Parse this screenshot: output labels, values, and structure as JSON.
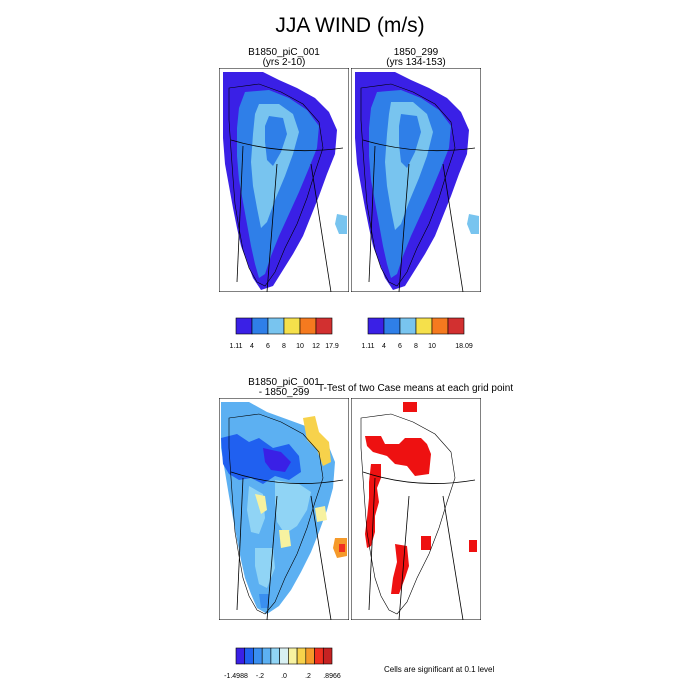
{
  "title": "JJA WIND (m/s)",
  "panels": {
    "p1": {
      "title": "B1850_piC_001",
      "subtitle": "(yrs 2-10)"
    },
    "p2": {
      "title": "1850_299",
      "subtitle": "(yrs 134-153)"
    },
    "p3": {
      "title": "B1850_piC_001",
      "subtitle": "- 1850_299"
    },
    "p4": {
      "title": "T-Test of two Case means at each grid point"
    }
  },
  "colorbars": {
    "cb1": {
      "colors": [
        "#3a20e6",
        "#2f7fe8",
        "#78c4ef",
        "#f5e04b",
        "#f57a1f",
        "#d23030"
      ],
      "labels": [
        "1.11",
        "4",
        "6",
        "8",
        "10",
        "12",
        "17.9"
      ]
    },
    "cb2": {
      "colors": [
        "#3a20e6",
        "#2f7fe8",
        "#78c4ef",
        "#f5e04b",
        "#f57a1f",
        "#d23030"
      ],
      "labels": [
        "1.11",
        "4",
        "6",
        "8",
        "10",
        "",
        "18.09"
      ]
    },
    "cb3": {
      "colors": [
        "#3a20e6",
        "#2060f0",
        "#3a8ff0",
        "#5cb0f2",
        "#90d4f5",
        "#d8f0f2",
        "#f7f2a0",
        "#f7d24b",
        "#f59a2a",
        "#f03020",
        "#c62222"
      ],
      "labels": [
        "-1.4988",
        "-.2",
        ".0",
        ".2",
        ".8966"
      ]
    }
  },
  "significance_note": "Cells are significant at 0.1 level",
  "colors": {
    "greenland_fill_dark": "#3a20e6",
    "significance_fill": "#ee1111"
  }
}
